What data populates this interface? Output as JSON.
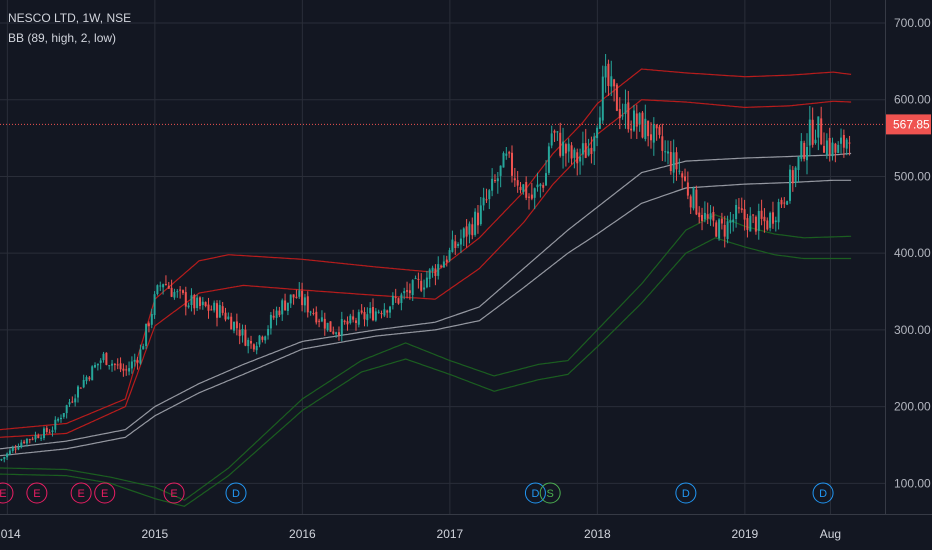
{
  "header": {
    "symbol": "NESCO LTD, 1W, NSE",
    "indicator": "BB (89, high, 2, low)"
  },
  "colors": {
    "background": "#131722",
    "grid": "#2a2e39",
    "up": "#26a69a",
    "down": "#ef5350",
    "upper_band": "#b71c1c",
    "lower_band": "#1b5e20",
    "basis": "#9598a1",
    "price_line": "#ef5350",
    "dividend": "#2196f3",
    "earnings": "#e91e63",
    "split": "#4caf50"
  },
  "chart_data": {
    "type": "candlestick",
    "last_price_label": "567.85",
    "last_price": 567.85,
    "ylim": [
      60,
      730
    ],
    "y_ticks": [
      {
        "value": 100,
        "label": "100.00"
      },
      {
        "value": 200,
        "label": "200.00"
      },
      {
        "value": 300,
        "label": "300.00"
      },
      {
        "value": 400,
        "label": "400.00"
      },
      {
        "value": 500,
        "label": "500.00"
      },
      {
        "value": 600,
        "label": "600.00"
      },
      {
        "value": 700,
        "label": "700.00"
      }
    ],
    "xlim": [
      2013.95,
      2019.95
    ],
    "x_ticks": [
      {
        "value": 2014,
        "label": "2014"
      },
      {
        "value": 2015,
        "label": "2015"
      },
      {
        "value": 2016,
        "label": "2016"
      },
      {
        "value": 2017,
        "label": "2017"
      },
      {
        "value": 2018,
        "label": "2018"
      },
      {
        "value": 2019,
        "label": "2019"
      },
      {
        "value": 2019.58,
        "label": "Aug"
      }
    ],
    "price_path": [
      [
        2013.95,
        130
      ],
      [
        2014.1,
        155
      ],
      [
        2014.3,
        170
      ],
      [
        2014.5,
        230
      ],
      [
        2014.65,
        265
      ],
      [
        2014.8,
        245
      ],
      [
        2014.9,
        270
      ],
      [
        2015.0,
        340
      ],
      [
        2015.05,
        365
      ],
      [
        2015.15,
        345
      ],
      [
        2015.3,
        330
      ],
      [
        2015.45,
        325
      ],
      [
        2015.55,
        305
      ],
      [
        2015.65,
        280
      ],
      [
        2015.75,
        300
      ],
      [
        2015.85,
        330
      ],
      [
        2015.95,
        345
      ],
      [
        2016.1,
        320
      ],
      [
        2016.2,
        300
      ],
      [
        2016.35,
        310
      ],
      [
        2016.5,
        325
      ],
      [
        2016.65,
        340
      ],
      [
        2016.8,
        360
      ],
      [
        2016.9,
        380
      ],
      [
        2017.0,
        400
      ],
      [
        2017.1,
        425
      ],
      [
        2017.2,
        450
      ],
      [
        2017.28,
        480
      ],
      [
        2017.38,
        520
      ],
      [
        2017.45,
        500
      ],
      [
        2017.55,
        470
      ],
      [
        2017.65,
        500
      ],
      [
        2017.68,
        560
      ],
      [
        2017.75,
        540
      ],
      [
        2017.85,
        520
      ],
      [
        2017.95,
        540
      ],
      [
        2018.05,
        625
      ],
      [
        2018.15,
        590
      ],
      [
        2018.25,
        570
      ],
      [
        2018.35,
        560
      ],
      [
        2018.45,
        530
      ],
      [
        2018.55,
        510
      ],
      [
        2018.62,
        480
      ],
      [
        2018.68,
        460
      ],
      [
        2018.75,
        440
      ],
      [
        2018.85,
        430
      ],
      [
        2018.95,
        450
      ],
      [
        2019.05,
        440
      ],
      [
        2019.15,
        440
      ],
      [
        2019.25,
        470
      ],
      [
        2019.35,
        510
      ],
      [
        2019.42,
        550
      ],
      [
        2019.48,
        565
      ],
      [
        2019.55,
        545
      ],
      [
        2019.62,
        530
      ],
      [
        2019.68,
        545
      ],
      [
        2019.72,
        568
      ]
    ],
    "series": [
      {
        "role": "upper_outer",
        "points": [
          [
            2013.95,
            170
          ],
          [
            2014.4,
            178
          ],
          [
            2014.8,
            210
          ],
          [
            2015.0,
            340
          ],
          [
            2015.3,
            390
          ],
          [
            2015.5,
            398
          ],
          [
            2016.0,
            392
          ],
          [
            2016.5,
            382
          ],
          [
            2016.9,
            375
          ],
          [
            2017.2,
            420
          ],
          [
            2017.5,
            480
          ],
          [
            2017.7,
            530
          ],
          [
            2017.9,
            570
          ],
          [
            2018.0,
            595
          ],
          [
            2018.3,
            640
          ],
          [
            2018.6,
            635
          ],
          [
            2019.0,
            630
          ],
          [
            2019.3,
            632
          ],
          [
            2019.6,
            636
          ],
          [
            2019.72,
            633
          ]
        ]
      },
      {
        "role": "upper_inner",
        "points": [
          [
            2013.95,
            160
          ],
          [
            2014.4,
            165
          ],
          [
            2014.8,
            200
          ],
          [
            2015.0,
            305
          ],
          [
            2015.3,
            348
          ],
          [
            2015.6,
            358
          ],
          [
            2016.0,
            352
          ],
          [
            2016.5,
            345
          ],
          [
            2016.9,
            340
          ],
          [
            2017.2,
            380
          ],
          [
            2017.5,
            440
          ],
          [
            2017.7,
            490
          ],
          [
            2017.9,
            530
          ],
          [
            2018.0,
            555
          ],
          [
            2018.3,
            600
          ],
          [
            2018.6,
            597
          ],
          [
            2019.0,
            590
          ],
          [
            2019.3,
            592
          ],
          [
            2019.6,
            598
          ],
          [
            2019.72,
            597
          ]
        ]
      },
      {
        "role": "basis_outer",
        "points": [
          [
            2013.95,
            145
          ],
          [
            2014.4,
            155
          ],
          [
            2014.8,
            170
          ],
          [
            2015.0,
            200
          ],
          [
            2015.3,
            230
          ],
          [
            2015.6,
            255
          ],
          [
            2016.0,
            285
          ],
          [
            2016.5,
            300
          ],
          [
            2016.9,
            310
          ],
          [
            2017.2,
            330
          ],
          [
            2017.5,
            380
          ],
          [
            2017.8,
            430
          ],
          [
            2018.0,
            460
          ],
          [
            2018.3,
            505
          ],
          [
            2018.6,
            520
          ],
          [
            2019.0,
            524
          ],
          [
            2019.3,
            526
          ],
          [
            2019.6,
            528
          ],
          [
            2019.72,
            530
          ]
        ]
      },
      {
        "role": "basis_inner",
        "points": [
          [
            2013.95,
            136
          ],
          [
            2014.4,
            145
          ],
          [
            2014.8,
            160
          ],
          [
            2015.0,
            188
          ],
          [
            2015.3,
            218
          ],
          [
            2015.6,
            242
          ],
          [
            2016.0,
            275
          ],
          [
            2016.5,
            292
          ],
          [
            2016.9,
            300
          ],
          [
            2017.2,
            312
          ],
          [
            2017.5,
            355
          ],
          [
            2017.8,
            400
          ],
          [
            2018.0,
            425
          ],
          [
            2018.3,
            465
          ],
          [
            2018.6,
            485
          ],
          [
            2019.0,
            490
          ],
          [
            2019.3,
            492
          ],
          [
            2019.6,
            495
          ],
          [
            2019.72,
            495
          ]
        ]
      },
      {
        "role": "lower_inner",
        "points": [
          [
            2013.95,
            120
          ],
          [
            2014.4,
            118
          ],
          [
            2014.7,
            108
          ],
          [
            2015.0,
            95
          ],
          [
            2015.2,
            78
          ],
          [
            2015.5,
            120
          ],
          [
            2016.0,
            210
          ],
          [
            2016.4,
            260
          ],
          [
            2016.7,
            283
          ],
          [
            2017.0,
            260
          ],
          [
            2017.3,
            240
          ],
          [
            2017.6,
            255
          ],
          [
            2017.8,
            260
          ],
          [
            2018.0,
            300
          ],
          [
            2018.3,
            360
          ],
          [
            2018.6,
            430
          ],
          [
            2018.8,
            450
          ],
          [
            2019.0,
            435
          ],
          [
            2019.2,
            425
          ],
          [
            2019.4,
            420
          ],
          [
            2019.72,
            422
          ]
        ]
      },
      {
        "role": "lower_outer",
        "points": [
          [
            2013.95,
            112
          ],
          [
            2014.4,
            110
          ],
          [
            2014.7,
            100
          ],
          [
            2015.0,
            80
          ],
          [
            2015.2,
            70
          ],
          [
            2015.5,
            110
          ],
          [
            2016.0,
            195
          ],
          [
            2016.4,
            245
          ],
          [
            2016.7,
            262
          ],
          [
            2017.0,
            242
          ],
          [
            2017.3,
            220
          ],
          [
            2017.6,
            235
          ],
          [
            2017.8,
            242
          ],
          [
            2018.0,
            278
          ],
          [
            2018.3,
            335
          ],
          [
            2018.6,
            400
          ],
          [
            2018.8,
            420
          ],
          [
            2019.0,
            408
          ],
          [
            2019.2,
            398
          ],
          [
            2019.4,
            393
          ],
          [
            2019.72,
            393
          ]
        ]
      }
    ],
    "events": [
      {
        "x": 2013.97,
        "label": "E",
        "type": "earnings"
      },
      {
        "x": 2014.2,
        "label": "E",
        "type": "earnings"
      },
      {
        "x": 2014.5,
        "label": "E",
        "type": "earnings"
      },
      {
        "x": 2014.66,
        "label": "E",
        "type": "earnings"
      },
      {
        "x": 2015.13,
        "label": "E",
        "type": "earnings"
      },
      {
        "x": 2015.55,
        "label": "D",
        "type": "dividend"
      },
      {
        "x": 2017.58,
        "label": "D",
        "type": "dividend"
      },
      {
        "x": 2017.68,
        "label": "S",
        "type": "split"
      },
      {
        "x": 2018.6,
        "label": "D",
        "type": "dividend"
      },
      {
        "x": 2019.53,
        "label": "D",
        "type": "dividend"
      }
    ]
  }
}
